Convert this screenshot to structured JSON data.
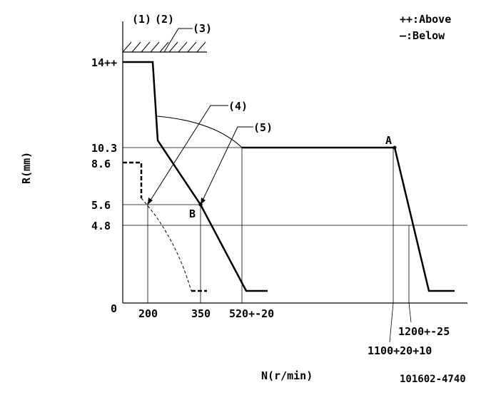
{
  "chart_data": {
    "type": "line",
    "ylabel": "R(mm)",
    "xlabel": "N(r/min)",
    "figure_id": "101602-4740",
    "legend": [
      "++:Above",
      "—:Below"
    ],
    "callouts": [
      "(1)",
      "(2)",
      "(3)",
      "(4)",
      "(5)"
    ],
    "point_labels": [
      "A",
      "B"
    ],
    "y_ticks": [
      "14++",
      "10.3",
      "8.6",
      "5.6",
      "4.8",
      "0"
    ],
    "x_ticks": [
      "200",
      "350",
      "520+-20"
    ],
    "x_ticks_lower": [
      "1200+-25",
      "1100+20+10"
    ],
    "series": [
      {
        "style": "solid",
        "x": [
          0,
          100,
          120,
          140,
          270,
          520,
          1100,
          1200,
          1330,
          1500
        ],
        "y": [
          14,
          14,
          9.6,
          9.1,
          5.6,
          0.7,
          10.3,
          4.8,
          0.7,
          0.7
        ]
      },
      {
        "style": "dashed",
        "x": [
          0,
          70,
          70,
          150,
          200,
          260,
          320,
          330
        ],
        "y": [
          8.6,
          8.6,
          6.6,
          5.6,
          4.6,
          3.0,
          1.2,
          0.7
        ]
      }
    ]
  }
}
